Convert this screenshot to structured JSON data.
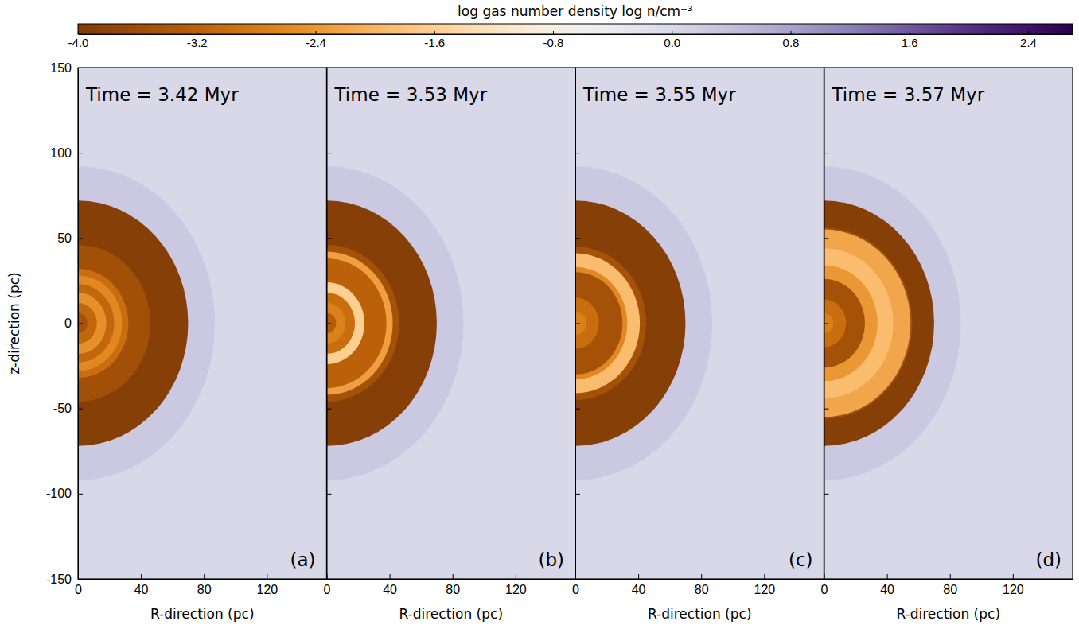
{
  "chart_data": {
    "type": "density_map",
    "colorbar_label": "log gas number density log n/cm⁻³",
    "color_range": [
      -4,
      2.7
    ],
    "color_ticks": [
      {
        "value": -4.0,
        "label": "-4.0"
      },
      {
        "value": -3.2,
        "label": "-3.2"
      },
      {
        "value": -2.4,
        "label": "-2.4"
      },
      {
        "value": -1.6,
        "label": "-1.6"
      },
      {
        "value": -0.8,
        "label": "-0.8"
      },
      {
        "value": 0.0,
        "label": "0.0"
      },
      {
        "value": 0.8,
        "label": "0.8"
      },
      {
        "value": 1.6,
        "label": "1.6"
      },
      {
        "value": 2.4,
        "label": "2.4"
      }
    ],
    "ylabel": "z-direction (pc)",
    "panels": [
      {
        "title": "Time = 3.42 Myr",
        "panel_label": "(a)",
        "xlabel": "R-direction (pc)",
        "xlim": [
          0,
          158
        ],
        "ylim": [
          -150,
          150
        ],
        "xticks": [
          0,
          40,
          80,
          120
        ],
        "yticks": [
          -150,
          -100,
          -50,
          0,
          50,
          100,
          150
        ],
        "ambient": 0.0,
        "regions": [
          {
            "R": 87,
            "z": 92,
            "value": 0.25
          },
          {
            "R": 70,
            "z": 72,
            "value": -3.9
          },
          {
            "R": 46,
            "z": 46,
            "value": -3.55
          },
          {
            "R": 32,
            "z": 32,
            "value": -3.0
          },
          {
            "R": 28,
            "z": 28,
            "value": -2.6
          },
          {
            "R": 23,
            "z": 23,
            "value": -3.1
          },
          {
            "R": 18,
            "z": 18,
            "value": -2.5
          },
          {
            "R": 12,
            "z": 12,
            "value": -3.1
          },
          {
            "R": 6,
            "z": 6,
            "value": -3.5
          }
        ]
      },
      {
        "title": "Time = 3.53 Myr",
        "panel_label": "(b)",
        "xlabel": "R-direction (pc)",
        "xlim": [
          0,
          158
        ],
        "ylim": [
          -150,
          150
        ],
        "xticks": [
          0,
          40,
          80,
          120
        ],
        "yticks": [
          -150,
          -100,
          -50,
          0,
          50,
          100,
          150
        ],
        "tick_labels": "x",
        "ambient": 0.0,
        "regions": [
          {
            "R": 87,
            "z": 92,
            "value": 0.25
          },
          {
            "R": 70,
            "z": 72,
            "value": -3.9
          },
          {
            "R": 46,
            "z": 46,
            "value": -3.5
          },
          {
            "R": 42,
            "z": 42,
            "value": -2.3
          },
          {
            "R": 38,
            "z": 38,
            "value": -3.2
          },
          {
            "R": 24,
            "z": 24,
            "value": -1.6
          },
          {
            "R": 18,
            "z": 18,
            "value": -3.0
          },
          {
            "R": 12,
            "z": 12,
            "value": -2.7
          },
          {
            "R": 6,
            "z": 6,
            "value": -3.3
          }
        ]
      },
      {
        "title": "Time = 3.55 Myr",
        "panel_label": "(c)",
        "xlabel": "R-direction (pc)",
        "xlim": [
          0,
          158
        ],
        "ylim": [
          -150,
          150
        ],
        "xticks": [
          0,
          40,
          80,
          120
        ],
        "yticks": [
          -150,
          -100,
          -50,
          0,
          50,
          100,
          150
        ],
        "tick_labels": "x",
        "ambient": 0.0,
        "regions": [
          {
            "R": 87,
            "z": 92,
            "value": 0.25
          },
          {
            "R": 70,
            "z": 72,
            "value": -3.9
          },
          {
            "R": 45,
            "z": 45,
            "value": -3.5
          },
          {
            "R": 41,
            "z": 41,
            "value": -1.9
          },
          {
            "R": 33,
            "z": 33,
            "value": -2.6
          },
          {
            "R": 30,
            "z": 30,
            "value": -3.5
          },
          {
            "R": 15,
            "z": 15,
            "value": -3.0
          },
          {
            "R": 7,
            "z": 7,
            "value": -2.7
          }
        ]
      },
      {
        "title": "Time = 3.57 Myr",
        "panel_label": "(d)",
        "xlabel": "R-direction (pc)",
        "xlim": [
          0,
          158
        ],
        "ylim": [
          -150,
          150
        ],
        "xticks": [
          0,
          40,
          80,
          120
        ],
        "yticks": [
          -150,
          -100,
          -50,
          0,
          50,
          100,
          150
        ],
        "tick_labels": "x",
        "ambient": 0.0,
        "regions": [
          {
            "R": 87,
            "z": 92,
            "value": 0.25
          },
          {
            "R": 70,
            "z": 72,
            "value": -3.9
          },
          {
            "R": 56,
            "z": 56,
            "value": -3.5
          },
          {
            "R": 55,
            "z": 55,
            "value": -2.2
          },
          {
            "R": 44,
            "z": 44,
            "value": -1.9
          },
          {
            "R": 34,
            "z": 34,
            "value": -2.4
          },
          {
            "R": 26,
            "z": 26,
            "value": -3.5
          },
          {
            "R": 14,
            "z": 14,
            "value": -3.0
          },
          {
            "R": 6,
            "z": 6,
            "value": -2.7
          }
        ]
      }
    ]
  }
}
